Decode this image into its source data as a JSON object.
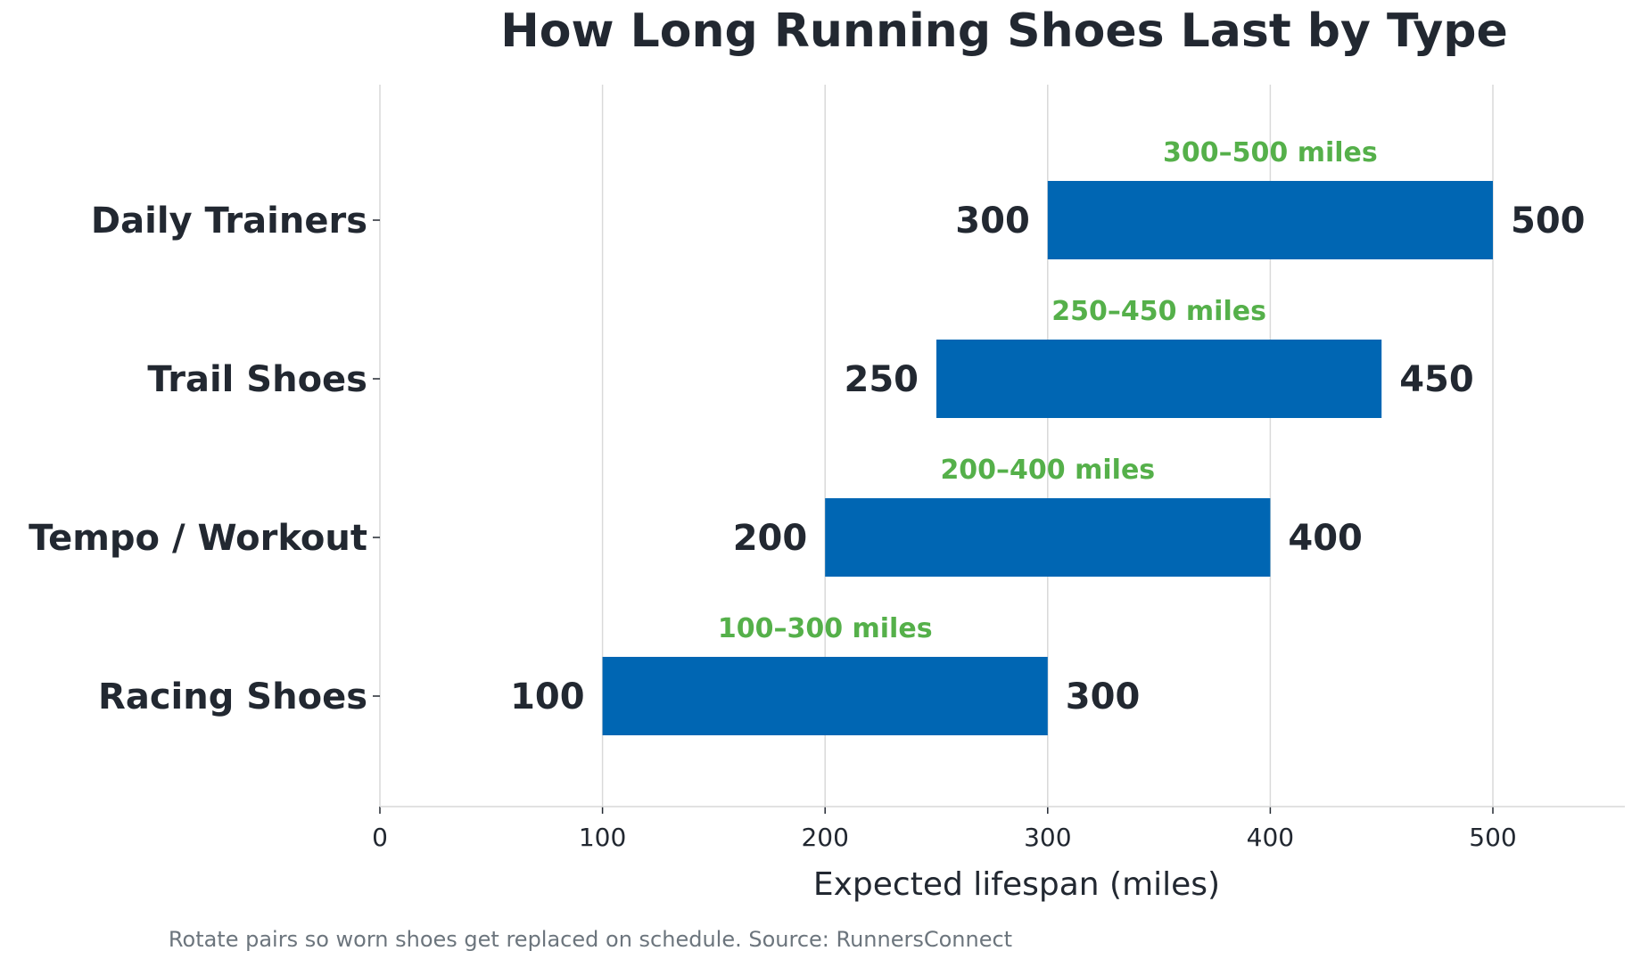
{
  "chart_data": {
    "type": "bar",
    "orientation": "horizontal",
    "subtype": "floating-range",
    "title": "How Long Running Shoes Last by Type",
    "xlabel": "Expected lifespan (miles)",
    "ylabel": "",
    "xlim": [
      0,
      560
    ],
    "xticks": [
      0,
      100,
      200,
      300,
      400,
      500
    ],
    "grid": "x",
    "legend": "none",
    "bar_color": "#0066b3",
    "range_label_color": "#55b04a",
    "categories": [
      "Daily Trainers",
      "Trail Shoes",
      "Tempo / Workout",
      "Racing Shoes"
    ],
    "ranges": [
      {
        "category": "Daily Trainers",
        "low": 300,
        "high": 500,
        "label": "300–500 miles"
      },
      {
        "category": "Trail Shoes",
        "low": 250,
        "high": 450,
        "label": "250–450 miles"
      },
      {
        "category": "Tempo / Workout",
        "low": 200,
        "high": 400,
        "label": "200–400 miles"
      },
      {
        "category": "Racing Shoes",
        "low": 100,
        "high": 300,
        "label": "100–300 miles"
      }
    ],
    "footnote": "Rotate pairs so worn shoes get replaced on schedule.  Source: RunnersConnect"
  }
}
